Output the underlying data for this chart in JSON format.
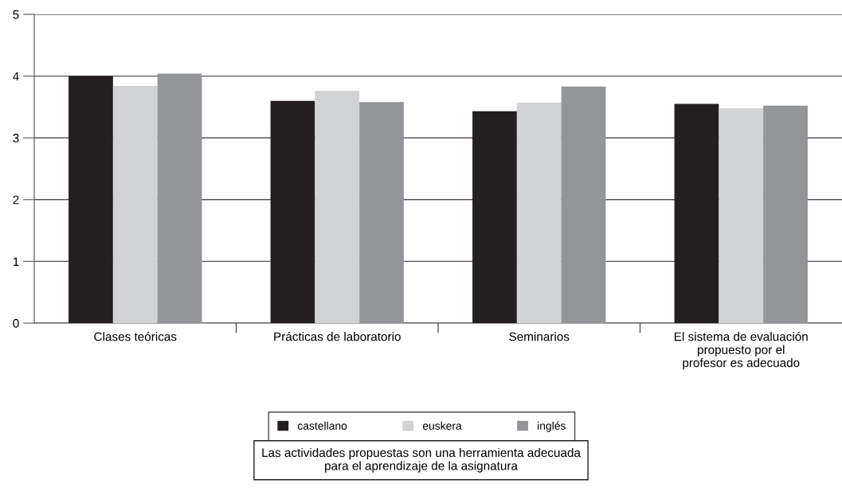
{
  "chart_data": {
    "type": "bar",
    "categories": [
      "Clases teóricas",
      "Prácticas de laboratorio",
      "Seminarios",
      "El sistema de evaluación\npropuesto por el\nprofesor es adecuado"
    ],
    "series": [
      {
        "name": "castellano",
        "color": "#231f20",
        "values": [
          4.0,
          3.6,
          3.43,
          3.55
        ]
      },
      {
        "name": "euskera",
        "color": "#d1d2d4",
        "values": [
          3.84,
          3.76,
          3.57,
          3.48
        ]
      },
      {
        "name": "inglés",
        "color": "#939598",
        "values": [
          4.04,
          3.58,
          3.83,
          3.52
        ]
      }
    ],
    "ylim": [
      0,
      5
    ],
    "yticks": [
      0,
      1,
      2,
      3,
      4,
      5
    ],
    "grid": "y",
    "legend": "bottom",
    "annotations": [
      "Las actividades propuestas son una herramienta adecuada\npara el aprendizaje de la asignatura"
    ]
  }
}
